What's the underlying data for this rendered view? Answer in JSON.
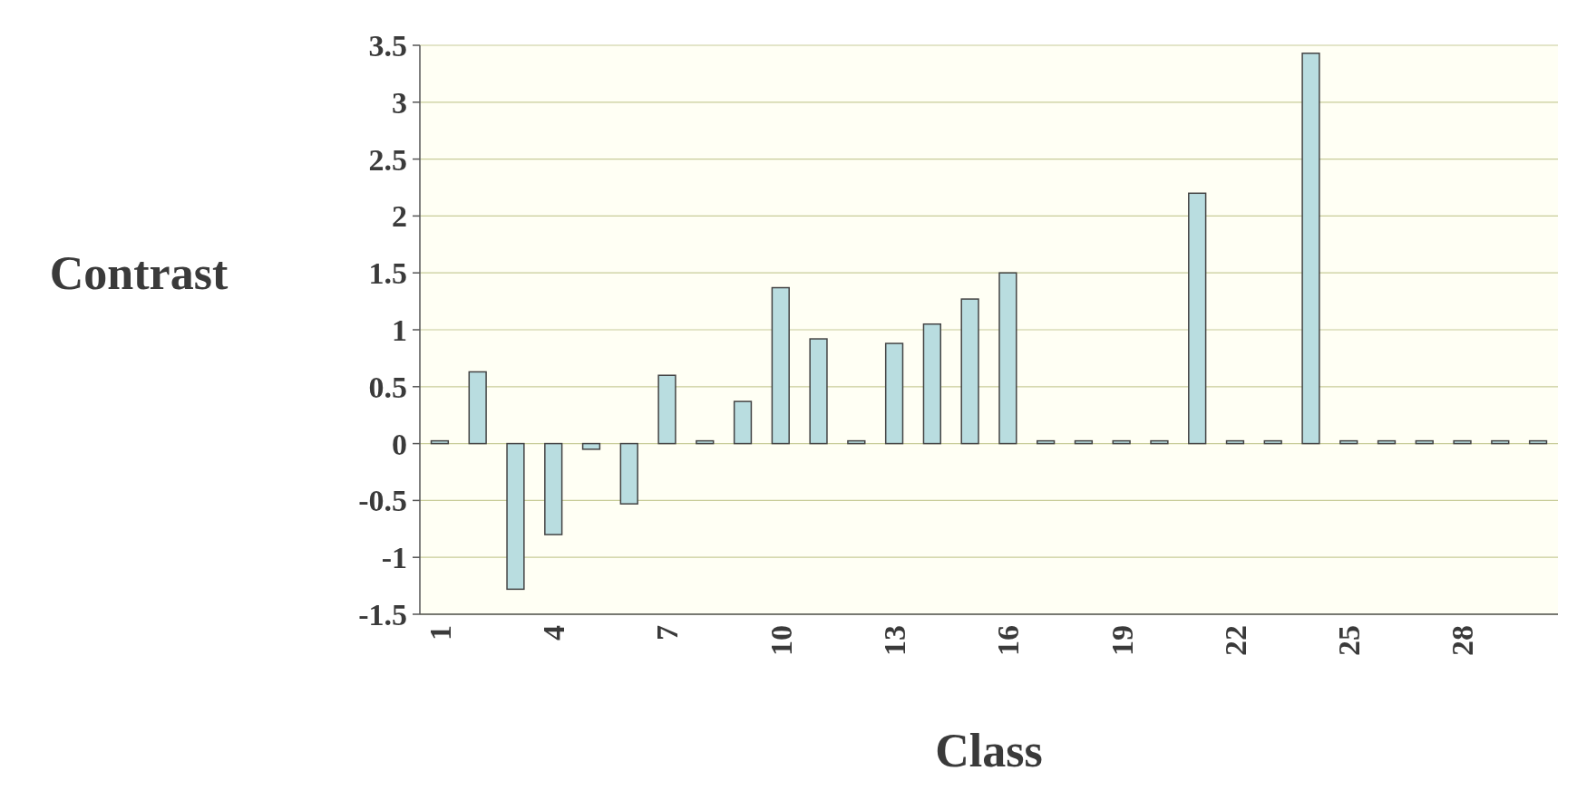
{
  "chart_data": {
    "type": "bar",
    "xlabel": "Class",
    "ylabel": "Contrast",
    "categories": [
      "1",
      null,
      null,
      "4",
      null,
      null,
      "7",
      null,
      null,
      "10",
      null,
      null,
      "13",
      null,
      null,
      "16",
      null,
      null,
      "19",
      null,
      null,
      "22",
      null,
      null,
      "25",
      null,
      null,
      "28",
      null,
      null
    ],
    "values": [
      0,
      0.63,
      -1.28,
      -0.8,
      -0.05,
      -0.53,
      0.6,
      0,
      0.37,
      1.37,
      0.92,
      0,
      0.88,
      1.05,
      1.27,
      1.5,
      0,
      0,
      0,
      0,
      2.2,
      0,
      0,
      3.43,
      0,
      0,
      0,
      0,
      0,
      0
    ],
    "color": "#b9dde0",
    "ylim": [
      -1.5,
      3.5
    ],
    "yticks": [
      -1.5,
      -1,
      -0.5,
      0,
      0.5,
      1,
      1.5,
      2,
      2.5,
      3,
      3.5
    ],
    "grid": "y"
  }
}
